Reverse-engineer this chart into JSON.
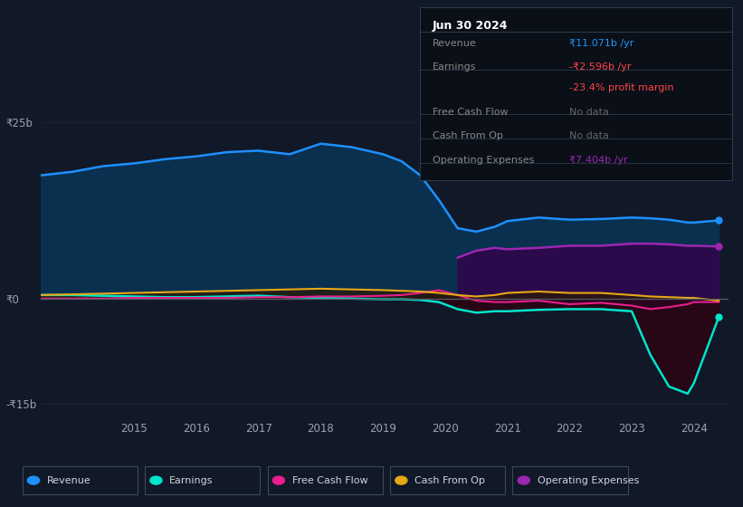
{
  "bg_color": "#111827",
  "chart_bg": "#111827",
  "sidebar_bg": "#0d1520",
  "tooltip_bg": "#0a0f18",
  "title_label": "Jun 30 2024",
  "tooltip_rows": [
    {
      "label": "Revenue",
      "value": "₹11.071b /yr",
      "label_color": "#888888",
      "value_color": "#2196f3"
    },
    {
      "label": "Earnings",
      "value": "-₹2.596b /yr",
      "label_color": "#888888",
      "value_color": "#ff4444"
    },
    {
      "label": "",
      "value": "-23.4% profit margin",
      "label_color": "#888888",
      "value_color": "#ff4444"
    },
    {
      "label": "Free Cash Flow",
      "value": "No data",
      "label_color": "#888888",
      "value_color": "#666666"
    },
    {
      "label": "Cash From Op",
      "value": "No data",
      "label_color": "#888888",
      "value_color": "#666666"
    },
    {
      "label": "Operating Expenses",
      "value": "₹7.404b /yr",
      "label_color": "#888888",
      "value_color": "#9c27b0"
    }
  ],
  "ylim": [
    -17,
    28
  ],
  "ytick_vals": [
    -15,
    0,
    25
  ],
  "ytick_labels": [
    "-₹15b",
    "₹0",
    "₹25b"
  ],
  "xtick_vals": [
    2015,
    2016,
    2017,
    2018,
    2019,
    2020,
    2021,
    2022,
    2023,
    2024
  ],
  "zero_line_color": "#555566",
  "grid_color": "#1e2a3a",
  "years": [
    2013.5,
    2014.0,
    2014.5,
    2015.0,
    2015.5,
    2016.0,
    2016.5,
    2017.0,
    2017.5,
    2018.0,
    2018.5,
    2019.0,
    2019.3,
    2019.6,
    2019.9,
    2020.2,
    2020.5,
    2020.8,
    2021.0,
    2021.5,
    2022.0,
    2022.5,
    2023.0,
    2023.3,
    2023.6,
    2023.9,
    2024.0,
    2024.4
  ],
  "revenue": [
    17.5,
    18.0,
    18.8,
    19.2,
    19.8,
    20.2,
    20.8,
    21.0,
    20.5,
    22.0,
    21.5,
    20.5,
    19.5,
    17.5,
    14.0,
    10.0,
    9.5,
    10.2,
    11.0,
    11.5,
    11.2,
    11.3,
    11.5,
    11.4,
    11.2,
    10.8,
    10.8,
    11.1
  ],
  "op_expenses": [
    0.0,
    0.0,
    0.0,
    0.0,
    0.0,
    0.0,
    0.0,
    0.0,
    0.0,
    0.0,
    0.0,
    0.0,
    0.0,
    0.0,
    0.0,
    5.8,
    6.8,
    7.2,
    7.0,
    7.2,
    7.5,
    7.5,
    7.8,
    7.8,
    7.7,
    7.5,
    7.5,
    7.4
  ],
  "earnings": [
    0.5,
    0.5,
    0.4,
    0.3,
    0.2,
    0.2,
    0.3,
    0.4,
    0.2,
    0.1,
    0.0,
    -0.1,
    -0.1,
    -0.2,
    -0.5,
    -1.5,
    -2.0,
    -1.8,
    -1.8,
    -1.6,
    -1.5,
    -1.5,
    -1.8,
    -8.0,
    -12.5,
    -13.5,
    -12.0,
    -2.6
  ],
  "free_cash": [
    0.0,
    0.0,
    0.0,
    0.1,
    0.1,
    0.1,
    0.1,
    0.2,
    0.2,
    0.3,
    0.3,
    0.4,
    0.5,
    0.8,
    1.2,
    0.5,
    -0.3,
    -0.5,
    -0.5,
    -0.3,
    -0.8,
    -0.6,
    -1.0,
    -1.5,
    -1.2,
    -0.8,
    -0.5,
    -0.5
  ],
  "cash_op": [
    0.5,
    0.6,
    0.7,
    0.8,
    0.9,
    1.0,
    1.1,
    1.2,
    1.3,
    1.4,
    1.3,
    1.2,
    1.1,
    1.0,
    0.8,
    0.5,
    0.3,
    0.5,
    0.8,
    1.0,
    0.8,
    0.8,
    0.5,
    0.3,
    0.2,
    0.1,
    0.1,
    -0.3
  ],
  "colors": {
    "revenue_line": "#1e90ff",
    "revenue_fill": "#0a3050",
    "op_line": "#9c27b0",
    "op_fill": "#2a0a4a",
    "earnings_line": "#00e5cc",
    "earn_neg_fill": "#2a0515",
    "earn_pos_fill": "#0a2515",
    "fcf_line": "#e91e8c",
    "fcf_fill": "#2a0520",
    "cop_line": "#e6a817",
    "cop_fill": "#2a1a05"
  },
  "legend_items": [
    {
      "label": "Revenue",
      "color": "#1e90ff"
    },
    {
      "label": "Earnings",
      "color": "#00e5cc"
    },
    {
      "label": "Free Cash Flow",
      "color": "#e91e8c"
    },
    {
      "label": "Cash From Op",
      "color": "#e6a817"
    },
    {
      "label": "Operating Expenses",
      "color": "#9c27b0"
    }
  ]
}
